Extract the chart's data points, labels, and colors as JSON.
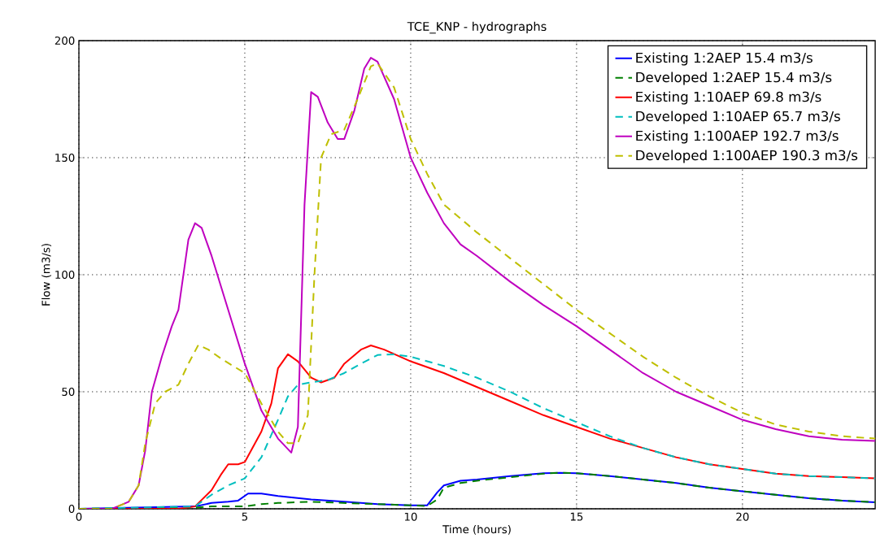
{
  "chart_data": {
    "type": "line",
    "title": "TCE_KNP - hydrographs",
    "xlabel": "Time (hours)",
    "ylabel": "Flow (m3/s)",
    "xlim": [
      0,
      24
    ],
    "ylim": [
      0,
      200
    ],
    "xticks": [
      0,
      5,
      10,
      15,
      20
    ],
    "yticks": [
      0,
      50,
      100,
      150,
      200
    ],
    "grid": true,
    "legend": "top right",
    "marker": "none",
    "series": [
      {
        "name": "Existing 1:2AEP 15.4 m3/s",
        "color": "#0000ff",
        "line_style": "solid",
        "x": [
          0,
          3.5,
          4,
          4.5,
          4.8,
          5.1,
          5.5,
          6,
          7,
          8,
          9,
          10,
          10.5,
          10.8,
          11,
          11.5,
          12,
          13,
          14,
          14.5,
          15,
          16,
          17,
          18,
          19,
          20,
          21,
          22,
          23,
          24
        ],
        "values": [
          0,
          1,
          2.5,
          3,
          3.5,
          6.5,
          6.5,
          5.5,
          4,
          3,
          2,
          1.5,
          1.5,
          7,
          10,
          12,
          12.5,
          14,
          15.2,
          15.4,
          15.2,
          14,
          12.5,
          11,
          9,
          7.5,
          6,
          4.5,
          3.5,
          2.8
        ]
      },
      {
        "name": "Developed 1:2AEP 15.4 m3/s",
        "color": "#008000",
        "line_style": "dashed",
        "x": [
          0,
          3.5,
          4,
          5,
          5.5,
          6,
          7,
          8,
          9,
          10,
          10.5,
          10.8,
          11,
          11.5,
          12,
          13,
          14,
          14.5,
          15,
          16,
          17,
          18,
          19,
          20,
          21,
          22,
          23,
          24
        ],
        "values": [
          0,
          0.5,
          1,
          1,
          2,
          2.5,
          3,
          2.5,
          2,
          1.5,
          1.2,
          4,
          9,
          11,
          12,
          13.5,
          15,
          15.4,
          15.2,
          14,
          12.5,
          11,
          9,
          7.5,
          6,
          4.5,
          3.5,
          2.8
        ]
      },
      {
        "name": "Existing 1:10AEP 69.8 m3/s",
        "color": "#ff0000",
        "line_style": "solid",
        "x": [
          0,
          3,
          3.5,
          4,
          4.3,
          4.5,
          4.8,
          5,
          5.5,
          5.8,
          6,
          6.3,
          6.6,
          7,
          7.3,
          7.7,
          8,
          8.5,
          8.8,
          9.2,
          10,
          11,
          12,
          13,
          14,
          15,
          16,
          17,
          18,
          19,
          20,
          21,
          22,
          23,
          24
        ],
        "values": [
          0,
          0,
          1,
          8,
          15,
          19,
          19,
          20,
          33,
          45,
          60,
          66,
          63,
          56,
          54,
          56,
          62,
          68,
          69.8,
          68,
          63,
          58,
          52,
          46,
          40,
          35,
          30,
          26,
          22,
          19,
          17,
          15,
          14,
          13.5,
          13
        ]
      },
      {
        "name": "Developed 1:10AEP 65.7 m3/s",
        "color": "#00bfbf",
        "line_style": "dashed",
        "x": [
          0,
          3.5,
          4,
          4.5,
          5,
          5.5,
          6,
          6.3,
          6.6,
          7,
          7.5,
          8,
          8.5,
          9,
          9.5,
          10,
          11,
          12,
          13,
          14,
          15,
          16,
          17,
          18,
          19,
          20,
          21,
          22,
          23,
          24
        ],
        "values": [
          0,
          1,
          6,
          10,
          13,
          22,
          38,
          48,
          53,
          54,
          55,
          58,
          62,
          65.7,
          66,
          65,
          61,
          56,
          50,
          43,
          37,
          31,
          26,
          22,
          19,
          17,
          15,
          14,
          13.5,
          13
        ]
      },
      {
        "name": "Existing 1:100AEP 192.7 m3/s",
        "color": "#bf00bf",
        "line_style": "solid",
        "x": [
          0,
          1,
          1.5,
          1.8,
          2,
          2.2,
          2.5,
          2.8,
          3,
          3.3,
          3.5,
          3.7,
          4,
          4.5,
          5,
          5.5,
          6,
          6.4,
          6.6,
          6.8,
          7,
          7.2,
          7.5,
          7.8,
          8,
          8.3,
          8.6,
          8.8,
          9,
          9.5,
          10,
          10.5,
          11,
          11.5,
          12,
          13,
          14,
          15,
          16,
          17,
          18,
          19,
          20,
          21,
          22,
          23,
          24
        ],
        "values": [
          0,
          0,
          3,
          10,
          25,
          50,
          65,
          78,
          85,
          115,
          122,
          120,
          108,
          85,
          62,
          42,
          30,
          24,
          35,
          130,
          178,
          176,
          165,
          158,
          158,
          170,
          188,
          192.7,
          191,
          175,
          150,
          135,
          122,
          113,
          108,
          97,
          87,
          78,
          68,
          58,
          50,
          44,
          38,
          34,
          31,
          29.5,
          29
        ]
      },
      {
        "name": "Developed 1:100AEP 190.3 m3/s",
        "color": "#bfbf00",
        "line_style": "dashed",
        "x": [
          0,
          1,
          1.5,
          1.8,
          2,
          2.3,
          2.6,
          3,
          3.3,
          3.6,
          3.9,
          4.3,
          5,
          5.5,
          6,
          6.3,
          6.6,
          6.9,
          7.1,
          7.3,
          7.6,
          8,
          8.4,
          8.8,
          9,
          9.5,
          10,
          10.5,
          11,
          12,
          13,
          14,
          15,
          16,
          17,
          18,
          19,
          20,
          21,
          22,
          23,
          24
        ],
        "values": [
          0,
          0,
          3,
          10,
          28,
          45,
          50,
          53,
          62,
          70,
          68,
          64,
          58,
          45,
          33,
          28,
          28,
          40,
          100,
          150,
          160,
          162,
          175,
          189,
          190.3,
          180,
          158,
          143,
          130,
          118,
          107,
          96,
          85,
          75,
          65,
          56,
          48,
          41,
          36,
          33,
          31,
          30
        ]
      }
    ]
  }
}
